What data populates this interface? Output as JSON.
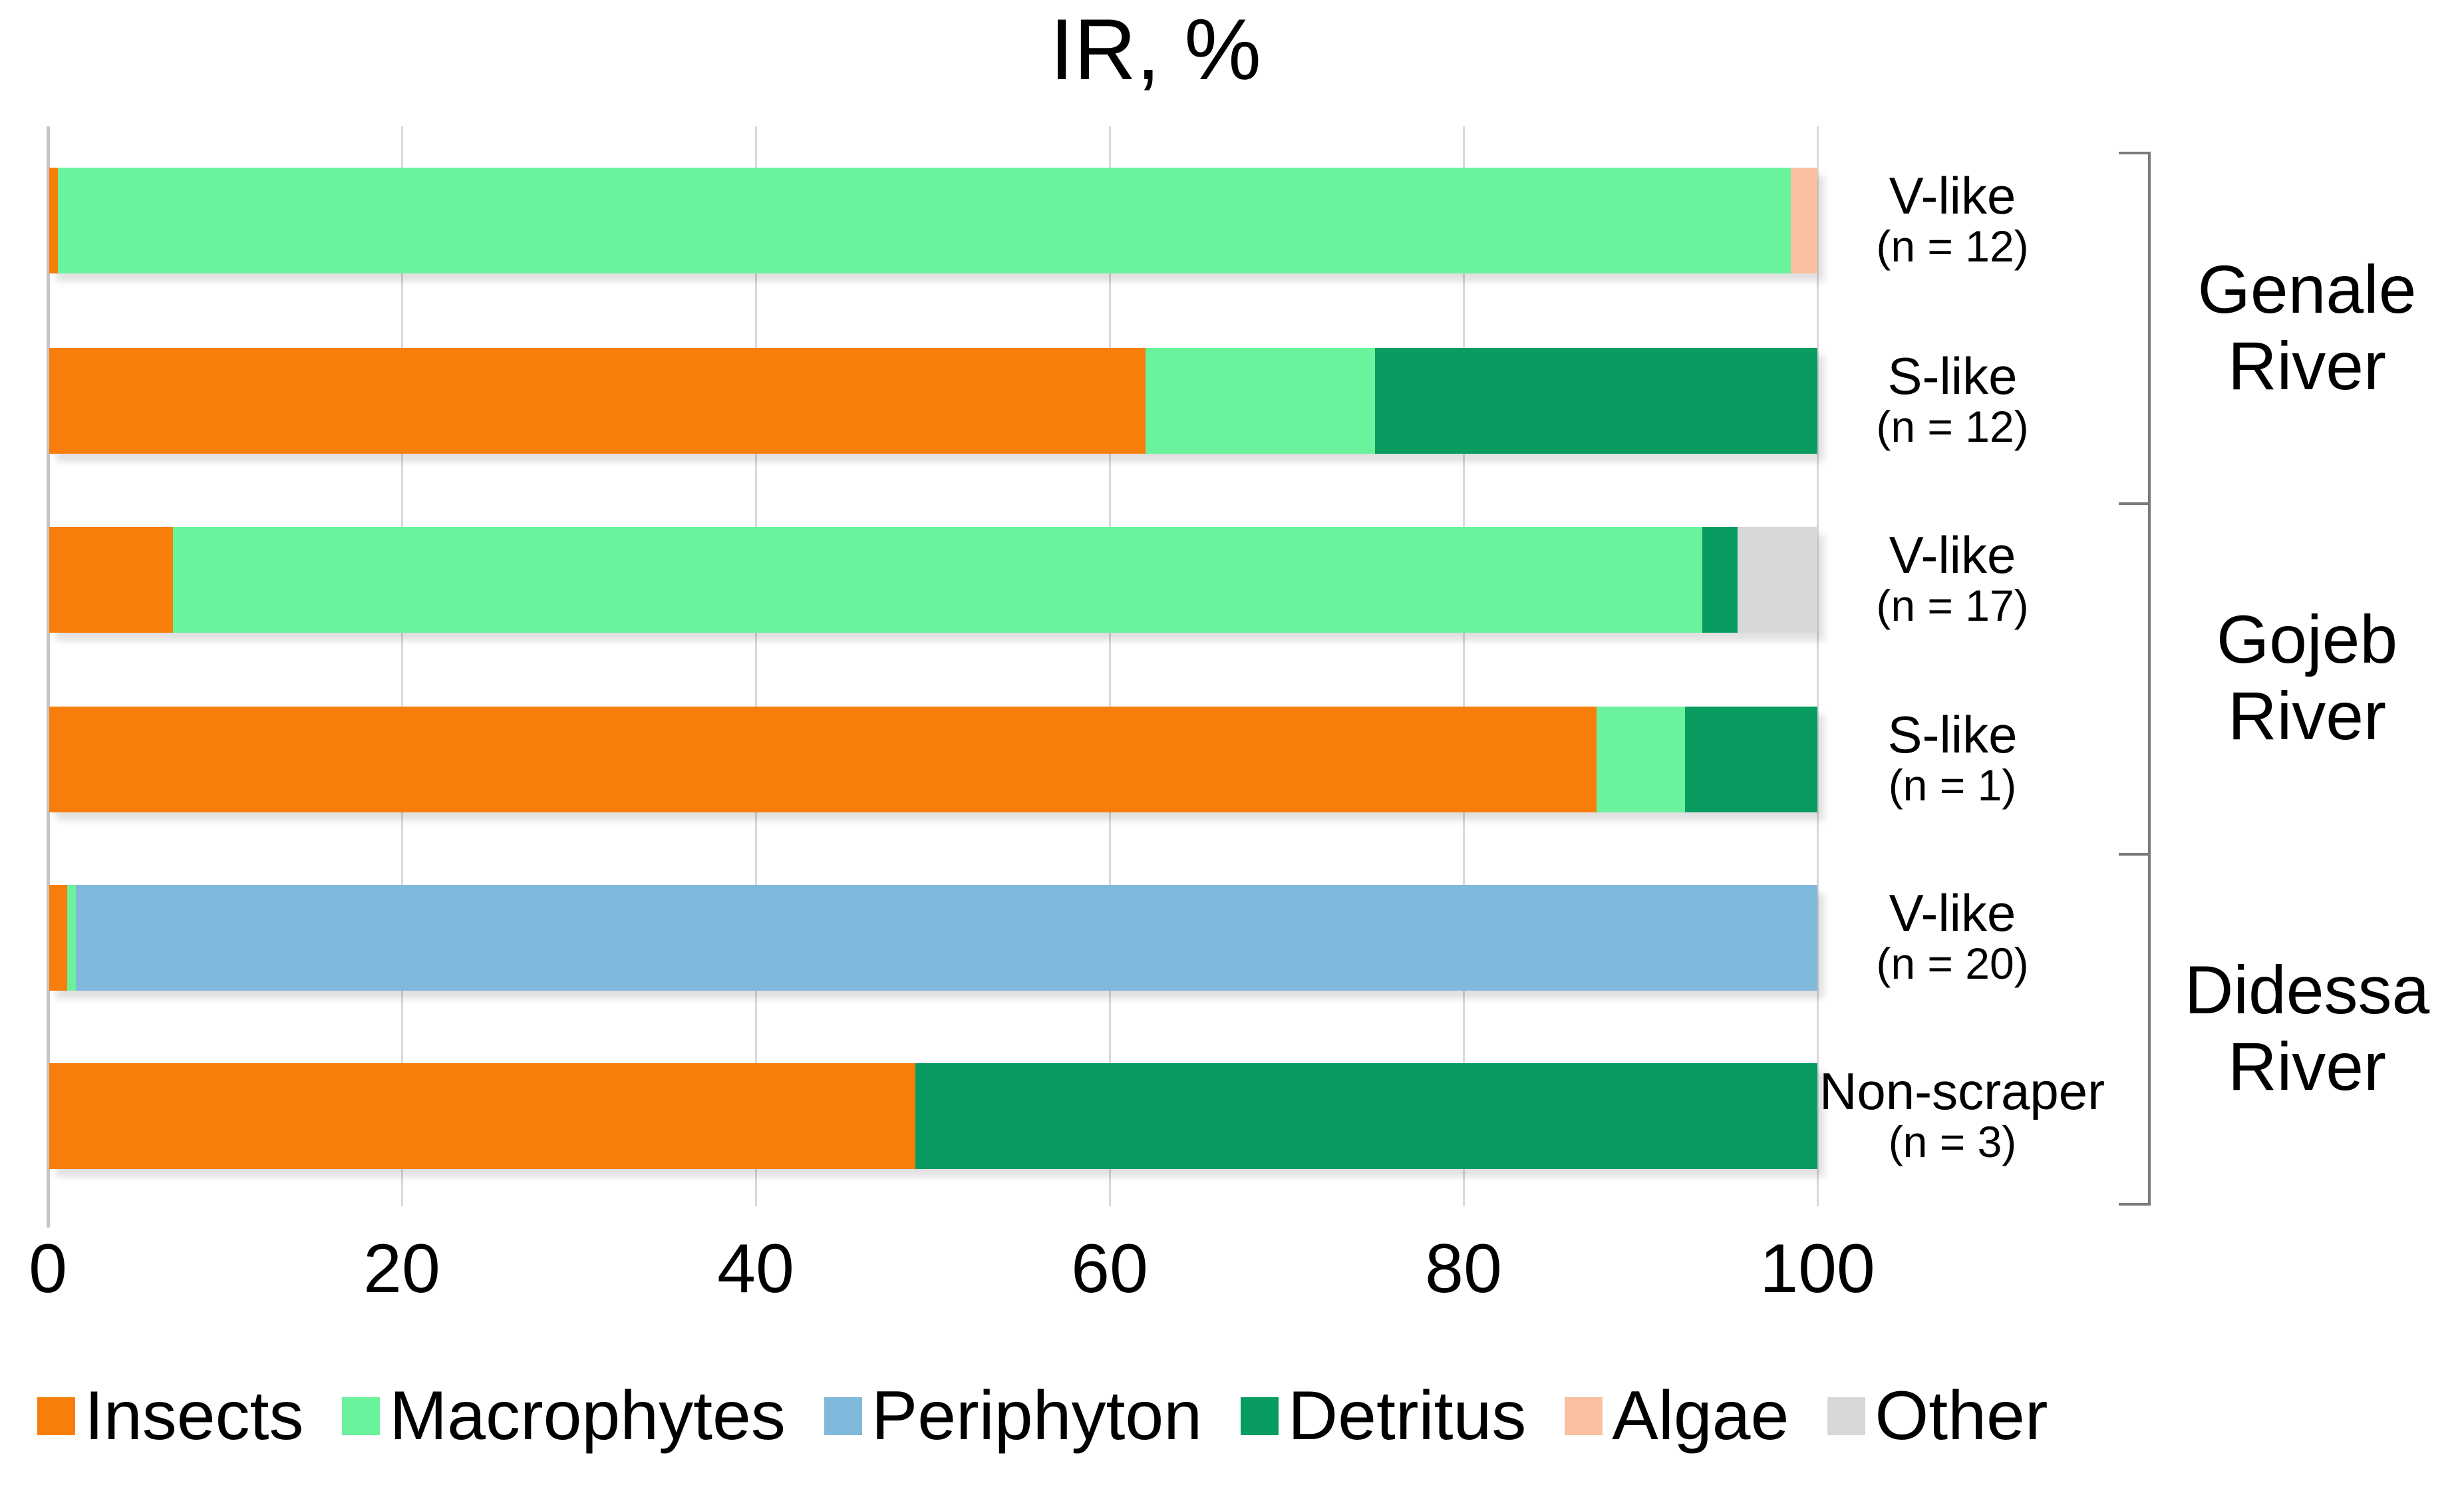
{
  "title": "IR, %",
  "x_axis": {
    "ticks": [
      "0",
      "20",
      "40",
      "60",
      "80",
      "100"
    ]
  },
  "legend": [
    {
      "label": "Insects",
      "color": "#F87E0C"
    },
    {
      "label": "Macrophytes",
      "color": "#6BF29C"
    },
    {
      "label": "Periphyton",
      "color": "#80B9DB"
    },
    {
      "label": "Detritus",
      "color": "#089C61"
    },
    {
      "label": "Algae",
      "color": "#F9C0A1"
    },
    {
      "label": "Other",
      "color": "#D8D8D8"
    }
  ],
  "rows": [
    {
      "label": "V-like",
      "n": "(n = 12)",
      "river": "Genale River",
      "segments": [
        {
          "category": "Insects",
          "value": 0.5
        },
        {
          "category": "Macrophytes",
          "value": 98
        },
        {
          "category": "Algae",
          "value": 1.5
        }
      ]
    },
    {
      "label": "S-like",
      "n": "(n = 12)",
      "river": "Genale River",
      "segments": [
        {
          "category": "Insects",
          "value": 62
        },
        {
          "category": "Macrophytes",
          "value": 13
        },
        {
          "category": "Detritus",
          "value": 25
        }
      ]
    },
    {
      "label": "V-like",
      "n": "(n = 17)",
      "river": "Gojeb River",
      "segments": [
        {
          "category": "Insects",
          "value": 7
        },
        {
          "category": "Macrophytes",
          "value": 86.5
        },
        {
          "category": "Detritus",
          "value": 2
        },
        {
          "category": "Other",
          "value": 4.5
        }
      ]
    },
    {
      "label": "S-like",
      "n": "(n = 1)",
      "river": "Gojeb River",
      "segments": [
        {
          "category": "Insects",
          "value": 87.5
        },
        {
          "category": "Macrophytes",
          "value": 5
        },
        {
          "category": "Detritus",
          "value": 7.5
        }
      ]
    },
    {
      "label": "V-like",
      "n": "(n = 20)",
      "river": "Didessa River",
      "segments": [
        {
          "category": "Insects",
          "value": 1
        },
        {
          "category": "Macrophytes",
          "value": 0.5
        },
        {
          "category": "Periphyton",
          "value": 98.5
        }
      ]
    },
    {
      "label": "Non-scraper",
      "n": "(n = 3)",
      "river": "Didessa River",
      "segments": [
        {
          "category": "Insects",
          "value": 49
        },
        {
          "category": "Detritus",
          "value": 51
        }
      ]
    }
  ],
  "groups": [
    {
      "name": "Genale River",
      "lines": [
        "Genale",
        "River"
      ]
    },
    {
      "name": "Gojeb River",
      "lines": [
        "Gojeb",
        "River"
      ]
    },
    {
      "name": "Didessa River",
      "lines": [
        "Didessa",
        "River"
      ]
    }
  ],
  "chart_data": {
    "type": "bar",
    "orientation": "horizontal-stacked",
    "title": "IR, %",
    "categories": [
      "V-like (n = 12)",
      "S-like (n = 12)",
      "V-like (n = 17)",
      "S-like (n = 1)",
      "V-like (n = 20)",
      "Non-scraper (n = 3)"
    ],
    "category_groups": [
      "Genale River",
      "Genale River",
      "Gojeb River",
      "Gojeb River",
      "Didessa River",
      "Didessa River"
    ],
    "series": [
      {
        "name": "Insects",
        "color": "#F87E0C",
        "values": [
          0.5,
          62,
          7,
          87.5,
          1,
          49
        ]
      },
      {
        "name": "Macrophytes",
        "color": "#6BF29C",
        "values": [
          98,
          13,
          86.5,
          5,
          0.5,
          0
        ]
      },
      {
        "name": "Periphyton",
        "color": "#80B9DB",
        "values": [
          0,
          0,
          0,
          0,
          98.5,
          0
        ]
      },
      {
        "name": "Detritus",
        "color": "#089C61",
        "values": [
          0,
          25,
          2,
          7.5,
          0,
          51
        ]
      },
      {
        "name": "Algae",
        "color": "#F9C0A1",
        "values": [
          1.5,
          0,
          0,
          0,
          0,
          0
        ]
      },
      {
        "name": "Other",
        "color": "#D8D8D8",
        "values": [
          0,
          0,
          4.5,
          0,
          0,
          0
        ]
      }
    ],
    "xlabel": "",
    "ylabel": "",
    "xlim": [
      0,
      100
    ],
    "x_ticks": [
      0,
      20,
      40,
      60,
      80,
      100
    ],
    "grid": true,
    "legend_position": "bottom"
  }
}
